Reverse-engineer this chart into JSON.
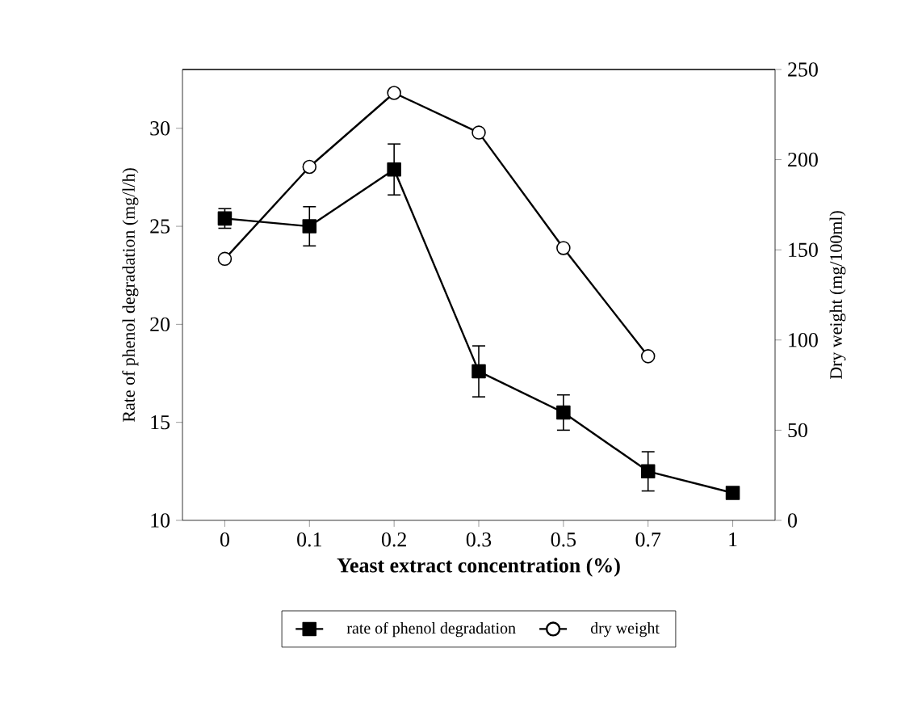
{
  "chart_data": {
    "type": "line",
    "xlabel": "Yeast extract concentration (%)",
    "ylabel": "Rate of phenol degradation (mg/l/h)",
    "y2label": "Dry weight (mg/100ml)",
    "categories": [
      "0",
      "0.1",
      "0.2",
      "0.3",
      "0.5",
      "0.7",
      "1"
    ],
    "series": [
      {
        "name": "rate of phenol degradation",
        "color": "#000000",
        "marker": "square",
        "values": [
          25.4,
          25.0,
          27.9,
          17.6,
          15.5,
          12.5,
          11.4
        ],
        "errors": [
          0.5,
          1.0,
          1.3,
          1.3,
          0.9,
          1.0,
          null
        ]
      },
      {
        "name": "dry weight",
        "color": "#000000",
        "marker": "circle",
        "axis": "y2",
        "values": [
          145,
          196,
          237,
          215,
          151,
          91,
          null
        ]
      }
    ],
    "ylim": [
      10,
      33
    ],
    "yticks": [
      10,
      15,
      20,
      25,
      30
    ],
    "y2lim": [
      0,
      250
    ],
    "y2ticks": [
      0,
      50,
      100,
      150,
      200,
      250
    ],
    "legend": "bottom",
    "grid": false
  }
}
